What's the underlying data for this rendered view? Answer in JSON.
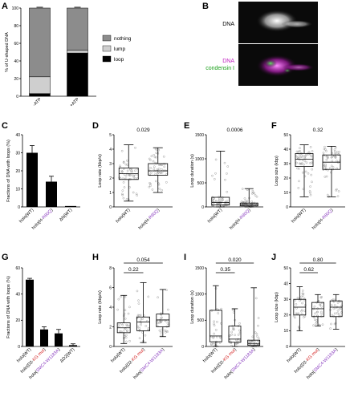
{
  "panels": {
    "A": "A",
    "B": "B",
    "C": "C",
    "D": "D",
    "E": "E",
    "F": "F",
    "G": "G",
    "H": "H",
    "I": "I",
    "J": "J"
  },
  "micrograph": {
    "label_dna": "DNA",
    "label_dna_merge": "DNA",
    "label_condensin": "condensin I",
    "colors": {
      "dna_merge": "#c020c0",
      "condensin": "#1aa01a"
    }
  },
  "chart_data": [
    {
      "panel": "A",
      "type": "bar",
      "stacked": true,
      "ylabel": "% of U-shaped DNA",
      "ylim": [
        0,
        100
      ],
      "yticks": [
        "0",
        "20",
        "40",
        "60",
        "80",
        "100"
      ],
      "categories": [
        "-ATP",
        "+ATP"
      ],
      "series": [
        {
          "name": "nothing",
          "color": "#8c8c8c",
          "values": [
            78,
            48
          ]
        },
        {
          "name": "lump",
          "color": "#cfcfcf",
          "values": [
            19,
            3
          ]
        },
        {
          "name": "loop",
          "color": "#000000",
          "values": [
            3,
            49
          ]
        }
      ],
      "legend": "right"
    },
    {
      "panel": "C",
      "type": "bar",
      "ylabel": "Fractions of DNA with loops (%)",
      "ylim": [
        0,
        40
      ],
      "yticks": [
        "0",
        "10",
        "20",
        "30",
        "40"
      ],
      "categories": [
        "holo(WT)",
        "holo(H-R80Q)",
        "ΔN(WT)"
      ],
      "category_parts": [
        [
          {
            "t": "holo(WT)",
            "c": "#000000"
          }
        ],
        [
          {
            "t": "holo(H-",
            "c": "#000000"
          },
          {
            "t": "R80Q",
            "c": "#8b3fc0"
          },
          {
            "t": ")",
            "c": "#000000"
          }
        ],
        [
          {
            "t": "ΔN(WT)",
            "c": "#000000"
          }
        ]
      ],
      "values": [
        30,
        14,
        0.5
      ],
      "errors": [
        4,
        3,
        0
      ]
    },
    {
      "panel": "D",
      "type": "box",
      "ylabel": "Loop rate (kbp/s)",
      "ylim": [
        0,
        5
      ],
      "yticks": [
        "0",
        "1",
        "2",
        "3",
        "4",
        "5"
      ],
      "categories": [
        "holo(WT)",
        "holo(H-R80Q)"
      ],
      "category_parts": [
        [
          {
            "t": "holo(WT)",
            "c": "#000000"
          }
        ],
        [
          {
            "t": "holo(H-",
            "c": "#000000"
          },
          {
            "t": "R80Q",
            "c": "#8b3fc0"
          },
          {
            "t": ")",
            "c": "#000000"
          }
        ]
      ],
      "boxes": [
        {
          "min": 0.4,
          "q1": 1.9,
          "median": 2.3,
          "q3": 2.7,
          "max": 4.3
        },
        {
          "min": 1.0,
          "q1": 2.2,
          "median": 2.5,
          "q3": 3.0,
          "max": 4.1
        }
      ],
      "comparisons": [
        {
          "a": 0,
          "b": 1,
          "p": "0.029"
        }
      ]
    },
    {
      "panel": "E",
      "type": "box",
      "ylabel": "Loop duration (s)",
      "ylim": [
        0,
        1500
      ],
      "yticks": [
        "0",
        "500",
        "1000",
        "1500"
      ],
      "categories": [
        "holo(WT)",
        "holo(H-R80Q)"
      ],
      "category_parts": [
        [
          {
            "t": "holo(WT)",
            "c": "#000000"
          }
        ],
        [
          {
            "t": "holo(H-",
            "c": "#000000"
          },
          {
            "t": "R80Q",
            "c": "#8b3fc0"
          },
          {
            "t": ")",
            "c": "#000000"
          }
        ]
      ],
      "boxes": [
        {
          "min": 0,
          "q1": 40,
          "median": 90,
          "q3": 200,
          "max": 1160
        },
        {
          "min": 0,
          "q1": 20,
          "median": 50,
          "q3": 80,
          "max": 380
        }
      ],
      "comparisons": [
        {
          "a": 0,
          "b": 1,
          "p": "0.0006"
        }
      ]
    },
    {
      "panel": "F",
      "type": "box",
      "ylabel": "Loop size (kbp)",
      "ylim": [
        0,
        50
      ],
      "yticks": [
        "0",
        "10",
        "20",
        "30",
        "40",
        "50"
      ],
      "categories": [
        "holo(WT)",
        "holo(H-R80Q)"
      ],
      "category_parts": [
        [
          {
            "t": "holo(WT)",
            "c": "#000000"
          }
        ],
        [
          {
            "t": "holo(H-",
            "c": "#000000"
          },
          {
            "t": "R80Q",
            "c": "#8b3fc0"
          },
          {
            "t": ")",
            "c": "#000000"
          }
        ]
      ],
      "boxes": [
        {
          "min": 7,
          "q1": 28,
          "median": 33,
          "q3": 37,
          "max": 43
        },
        {
          "min": 7,
          "q1": 26,
          "median": 31,
          "q3": 36,
          "max": 42
        }
      ],
      "comparisons": [
        {
          "a": 0,
          "b": 1,
          "p": "0.32"
        }
      ]
    },
    {
      "panel": "G",
      "type": "bar",
      "ylabel": "Fractions of DNA with loops (%)",
      "ylim": [
        0,
        60
      ],
      "yticks": [
        "0",
        "20",
        "40",
        "60"
      ],
      "categories": [
        "holo(WT)",
        "holo(D2-KG mut)",
        "holo(SMC4-W1183A)",
        "ΔD2(WT)"
      ],
      "category_parts": [
        [
          {
            "t": "holo(WT)",
            "c": "#000000"
          }
        ],
        [
          {
            "t": "holo(D2-",
            "c": "#000000"
          },
          {
            "t": "KG mut",
            "c": "#d42020"
          },
          {
            "t": ")",
            "c": "#000000"
          }
        ],
        [
          {
            "t": "holo(",
            "c": "#000000"
          },
          {
            "t": "SMC4-W1183A",
            "c": "#8b3fc0"
          },
          {
            "t": ")",
            "c": "#000000"
          }
        ],
        [
          {
            "t": "ΔD2(WT)",
            "c": "#000000"
          }
        ]
      ],
      "values": [
        51,
        13,
        10,
        1
      ],
      "errors": [
        1,
        2,
        3,
        1
      ]
    },
    {
      "panel": "H",
      "type": "box",
      "ylabel": "Loop rate (kbp/s)",
      "ylim": [
        0,
        8
      ],
      "yticks": [
        "0",
        "2",
        "4",
        "6",
        "8"
      ],
      "categories": [
        "holo(WT)",
        "holo(D2-KG mut)",
        "holo(SMC4-W1183A)"
      ],
      "category_parts": [
        [
          {
            "t": "holo(WT)",
            "c": "#000000"
          }
        ],
        [
          {
            "t": "holo(D2-",
            "c": "#000000"
          },
          {
            "t": "KG mut",
            "c": "#d42020"
          },
          {
            "t": ")",
            "c": "#000000"
          }
        ],
        [
          {
            "t": "holo(",
            "c": "#000000"
          },
          {
            "t": "SMC4-W1183A",
            "c": "#8b3fc0"
          },
          {
            "t": ")",
            "c": "#000000"
          }
        ]
      ],
      "boxes": [
        {
          "min": 0.3,
          "q1": 1.4,
          "median": 1.9,
          "q3": 2.4,
          "max": 5.2
        },
        {
          "min": 0.4,
          "q1": 1.6,
          "median": 2.5,
          "q3": 3.0,
          "max": 6.5
        },
        {
          "min": 1.0,
          "q1": 2.0,
          "median": 2.7,
          "q3": 3.3,
          "max": 5.8
        }
      ],
      "comparisons": [
        {
          "a": 0,
          "b": 1,
          "p": "0.22"
        },
        {
          "a": 0,
          "b": 2,
          "p": "0.054"
        }
      ]
    },
    {
      "panel": "I",
      "type": "box",
      "ylabel": "Loop duration (s)",
      "ylim": [
        0,
        1500
      ],
      "yticks": [
        "0",
        "500",
        "1000",
        "1500"
      ],
      "categories": [
        "holo(WT)",
        "holo(D2-KG mut)",
        "holo(SMC4-W1183A)"
      ],
      "category_parts": [
        [
          {
            "t": "holo(WT)",
            "c": "#000000"
          }
        ],
        [
          {
            "t": "holo(D2-",
            "c": "#000000"
          },
          {
            "t": "KG mut",
            "c": "#d42020"
          },
          {
            "t": ")",
            "c": "#000000"
          }
        ],
        [
          {
            "t": "holo(",
            "c": "#000000"
          },
          {
            "t": "SMC4-W1183A",
            "c": "#8b3fc0"
          },
          {
            "t": ")",
            "c": "#000000"
          }
        ]
      ],
      "boxes": [
        {
          "min": 0,
          "q1": 90,
          "median": 200,
          "q3": 690,
          "max": 1160
        },
        {
          "min": 0,
          "q1": 80,
          "median": 140,
          "q3": 390,
          "max": 720
        },
        {
          "min": 0,
          "q1": 20,
          "median": 50,
          "q3": 120,
          "max": 1120
        }
      ],
      "comparisons": [
        {
          "a": 0,
          "b": 1,
          "p": "0.35"
        },
        {
          "a": 0,
          "b": 2,
          "p": "0.020"
        }
      ]
    },
    {
      "panel": "J",
      "type": "box",
      "ylabel": "Loop size (kbp)",
      "ylim": [
        0,
        50
      ],
      "yticks": [
        "0",
        "10",
        "20",
        "30",
        "40",
        "50"
      ],
      "categories": [
        "holo(WT)",
        "holo(D2-KG mut)",
        "holo(SMC4-W1183A)"
      ],
      "category_parts": [
        [
          {
            "t": "holo(WT)",
            "c": "#000000"
          }
        ],
        [
          {
            "t": "holo(D2-",
            "c": "#000000"
          },
          {
            "t": "KG mut",
            "c": "#d42020"
          },
          {
            "t": ")",
            "c": "#000000"
          }
        ],
        [
          {
            "t": "holo(",
            "c": "#000000"
          },
          {
            "t": "SMC4-W1183A",
            "c": "#8b3fc0"
          },
          {
            "t": ")",
            "c": "#000000"
          }
        ]
      ],
      "boxes": [
        {
          "min": 10,
          "q1": 20,
          "median": 25,
          "q3": 30,
          "max": 38
        },
        {
          "min": 13,
          "q1": 19,
          "median": 24,
          "q3": 28,
          "max": 33
        },
        {
          "min": 11,
          "q1": 19,
          "median": 25,
          "q3": 29,
          "max": 33
        }
      ],
      "comparisons": [
        {
          "a": 0,
          "b": 1,
          "p": "0.62"
        },
        {
          "a": 0,
          "b": 2,
          "p": "0.80"
        }
      ]
    }
  ]
}
